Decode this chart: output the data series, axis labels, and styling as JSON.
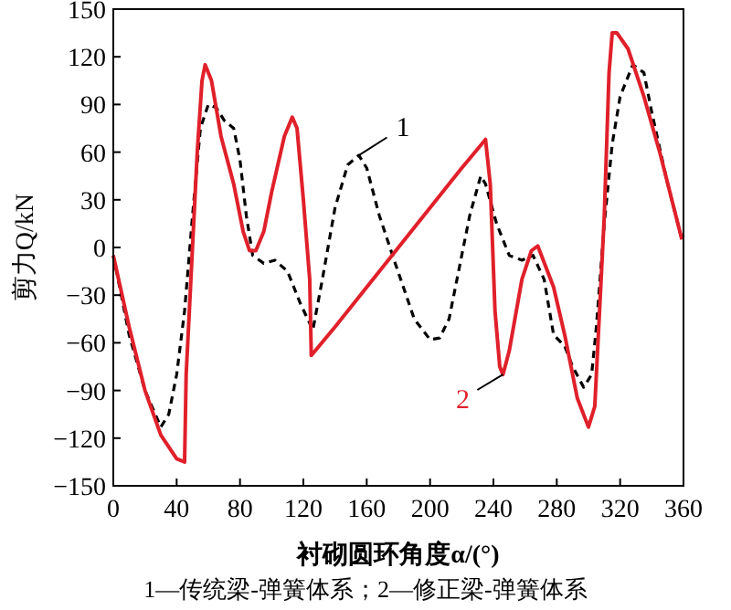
{
  "chart_data": {
    "type": "line",
    "xlabel": "衬砌圆环角度α/(°)",
    "ylabel": "剪力Q/kN",
    "xlim": [
      0,
      360
    ],
    "ylim": [
      -150,
      150
    ],
    "xticks": [
      0,
      40,
      80,
      120,
      160,
      200,
      240,
      280,
      320,
      360
    ],
    "yticks": [
      -150,
      -120,
      -90,
      -60,
      -30,
      0,
      30,
      60,
      90,
      120,
      150
    ],
    "grid": false,
    "annotations": [
      "1—传统梁-弹簧体系；2—修正梁-弹簧体系"
    ],
    "series": [
      {
        "name": "1",
        "color": "#000000",
        "line_style": "dashed",
        "x": [
          0,
          10,
          20,
          30,
          35,
          40,
          45,
          50,
          55,
          60,
          65,
          70,
          76,
          80,
          84,
          88,
          95,
          102,
          110,
          118,
          126,
          132,
          140,
          148,
          155,
          160,
          168,
          178,
          190,
          200,
          206,
          212,
          218,
          225,
          232,
          235,
          242,
          250,
          258,
          265,
          272,
          278,
          285,
          290,
          297,
          302,
          305,
          310,
          315,
          320,
          328,
          335,
          340,
          350,
          359
        ],
        "values": [
          -5,
          -55,
          -90,
          -113,
          -105,
          -80,
          -40,
          20,
          75,
          90,
          88,
          80,
          75,
          55,
          20,
          -5,
          -10,
          -8,
          -15,
          -35,
          -52,
          -20,
          25,
          52,
          58,
          50,
          20,
          -10,
          -45,
          -58,
          -57,
          -45,
          -15,
          20,
          45,
          40,
          15,
          -5,
          -8,
          -5,
          -20,
          -55,
          -62,
          -75,
          -88,
          -80,
          -50,
          15,
          65,
          95,
          115,
          110,
          85,
          40,
          5
        ]
      },
      {
        "name": "2",
        "color": "#e0202a",
        "line_style": "solid",
        "x": [
          0,
          10,
          20,
          30,
          40,
          45,
          46,
          50,
          53,
          56,
          58,
          62,
          68,
          76,
          82,
          86,
          90,
          95,
          100,
          108,
          113,
          116,
          120,
          124,
          125,
          140,
          160,
          180,
          200,
          220,
          235,
          238,
          241,
          244,
          246,
          250,
          258,
          264,
          268,
          278,
          285,
          293,
          300,
          304,
          310,
          313,
          315,
          318,
          325,
          335,
          345,
          359
        ],
        "values": [
          -5,
          -50,
          -90,
          -118,
          -133,
          -135,
          -80,
          0,
          60,
          105,
          115,
          105,
          70,
          40,
          10,
          -2,
          -2,
          10,
          35,
          70,
          82,
          75,
          30,
          -20,
          -68,
          -50,
          -25,
          0,
          25,
          50,
          68,
          40,
          -40,
          -75,
          -80,
          -65,
          -20,
          -2,
          1,
          -25,
          -55,
          -95,
          -113,
          -100,
          20,
          110,
          135,
          135,
          125,
          95,
          60,
          5
        ]
      }
    ]
  }
}
